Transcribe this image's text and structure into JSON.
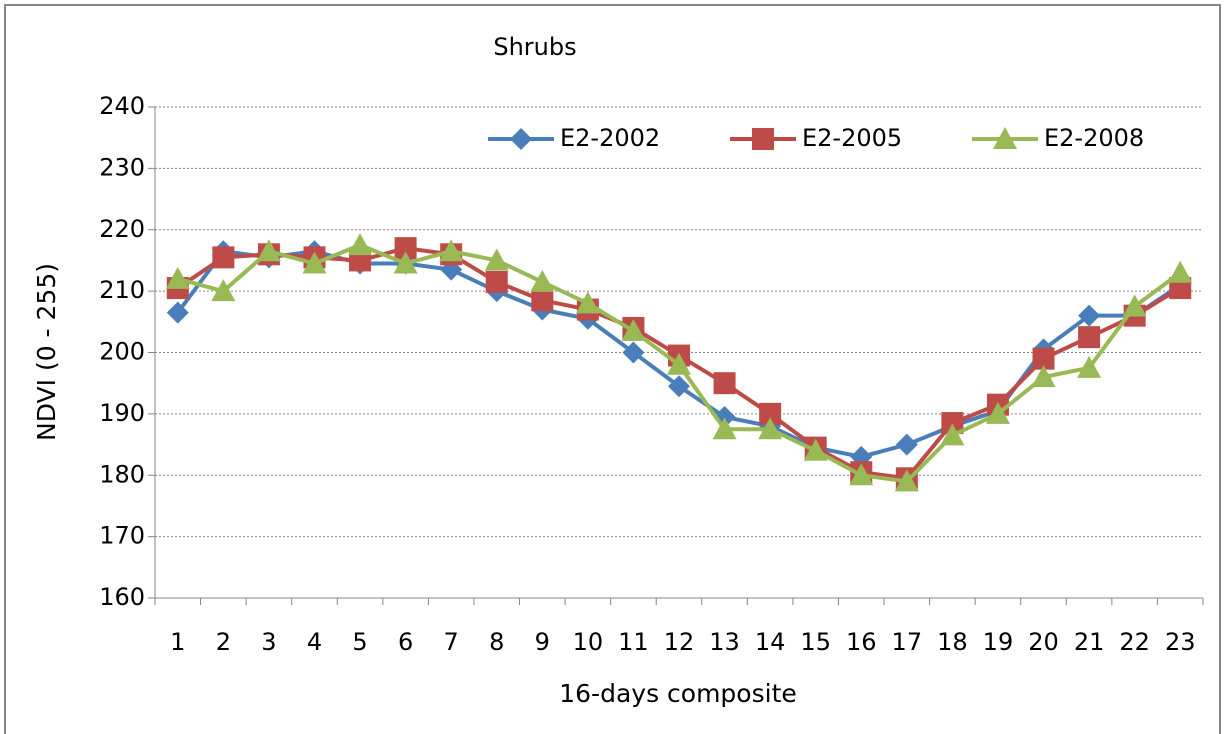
{
  "chart_data": {
    "type": "line",
    "title": "Shrubs",
    "x_label": "16-days composite",
    "y_label": "NDVI (0 - 255)",
    "categories": [
      "1",
      "2",
      "3",
      "4",
      "5",
      "6",
      "7",
      "8",
      "9",
      "10",
      "11",
      "12",
      "13",
      "14",
      "15",
      "16",
      "17",
      "18",
      "19",
      "20",
      "21",
      "22",
      "23"
    ],
    "series": [
      {
        "name": "E2-2002",
        "color": "#4a7ebb",
        "marker": "diamond",
        "values": [
          206.5,
          216.5,
          215.5,
          216.5,
          214.5,
          214.5,
          213.5,
          210,
          207,
          205.5,
          200,
          194.5,
          189.5,
          188,
          184.5,
          183,
          185,
          188,
          190.5,
          200.5,
          206,
          206,
          211
        ]
      },
      {
        "name": "E2-2005",
        "color": "#be4b48",
        "marker": "square",
        "values": [
          210.5,
          215.5,
          216,
          215.5,
          215,
          217,
          216,
          211.5,
          208.5,
          207,
          204,
          199.5,
          195,
          190,
          184.5,
          180.5,
          179.5,
          188.5,
          191.5,
          199,
          202.5,
          206,
          210.5
        ]
      },
      {
        "name": "E2-2008",
        "color": "#98b954",
        "marker": "triangle",
        "values": [
          212,
          210,
          216.5,
          214.5,
          217.5,
          214.5,
          216.5,
          215,
          211.5,
          208,
          203.5,
          198,
          187.5,
          187.5,
          184,
          180,
          179,
          186.5,
          190,
          196,
          197.5,
          207.5,
          213
        ]
      }
    ],
    "ylim": [
      160,
      240
    ],
    "yticks": [
      160,
      170,
      180,
      190,
      200,
      210,
      220,
      230,
      240
    ],
    "grid": true,
    "legend": "top"
  }
}
